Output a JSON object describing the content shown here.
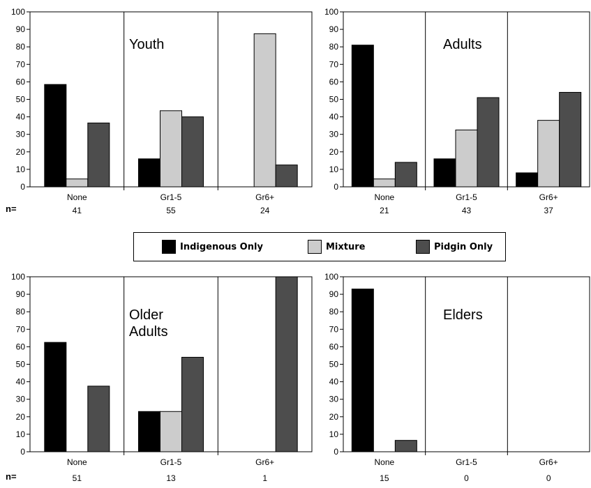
{
  "legend": [
    {
      "label": "Indigenous Only",
      "color": "#000000"
    },
    {
      "label": "Mixture",
      "color": "#cccccc"
    },
    {
      "label": "Pidgin Only",
      "color": "#4d4d4d"
    }
  ],
  "n_label": "n=",
  "chart_data": [
    {
      "type": "bar",
      "title": "Youth",
      "categories": [
        "None",
        "Gr1-5",
        "Gr6+"
      ],
      "n": [
        "41",
        "55",
        "24"
      ],
      "ylim": [
        0,
        100
      ],
      "yticks": [
        "0",
        "10",
        "20",
        "30",
        "40",
        "50",
        "60",
        "70",
        "80",
        "90",
        "100"
      ],
      "series": [
        {
          "name": "Indigenous Only",
          "values": [
            58.5,
            16,
            0
          ]
        },
        {
          "name": "Mixture",
          "values": [
            4.5,
            43.5,
            87.5
          ]
        },
        {
          "name": "Pidgin Only",
          "values": [
            36.5,
            40,
            12.5
          ]
        }
      ]
    },
    {
      "type": "bar",
      "title": "Adults",
      "categories": [
        "None",
        "Gr1-5",
        "Gr6+"
      ],
      "n": [
        "21",
        "43",
        "37"
      ],
      "ylim": [
        0,
        100
      ],
      "yticks": [
        "0",
        "10",
        "20",
        "30",
        "40",
        "50",
        "60",
        "70",
        "80",
        "90",
        "100"
      ],
      "series": [
        {
          "name": "Indigenous Only",
          "values": [
            81,
            16,
            8
          ]
        },
        {
          "name": "Mixture",
          "values": [
            4.5,
            32.5,
            38
          ]
        },
        {
          "name": "Pidgin Only",
          "values": [
            14,
            51,
            54
          ]
        }
      ]
    },
    {
      "type": "bar",
      "title": "Older Adults",
      "categories": [
        "None",
        "Gr1-5",
        "Gr6+"
      ],
      "n": [
        "51",
        "13",
        "1"
      ],
      "ylim": [
        0,
        100
      ],
      "yticks": [
        "0",
        "10",
        "20",
        "30",
        "40",
        "50",
        "60",
        "70",
        "80",
        "90",
        "100"
      ],
      "series": [
        {
          "name": "Indigenous Only",
          "values": [
            62.5,
            23,
            0
          ]
        },
        {
          "name": "Mixture",
          "values": [
            0,
            23,
            0
          ]
        },
        {
          "name": "Pidgin Only",
          "values": [
            37.5,
            54,
            100
          ]
        }
      ]
    },
    {
      "type": "bar",
      "title": "Elders",
      "categories": [
        "None",
        "Gr1-5",
        "Gr6+"
      ],
      "n": [
        "15",
        "0",
        "0"
      ],
      "ylim": [
        0,
        100
      ],
      "yticks": [
        "0",
        "10",
        "20",
        "30",
        "40",
        "50",
        "60",
        "70",
        "80",
        "90",
        "100"
      ],
      "series": [
        {
          "name": "Indigenous Only",
          "values": [
            93,
            0,
            0
          ]
        },
        {
          "name": "Mixture",
          "values": [
            0,
            0,
            0
          ]
        },
        {
          "name": "Pidgin Only",
          "values": [
            6.5,
            0,
            0
          ]
        }
      ]
    }
  ]
}
